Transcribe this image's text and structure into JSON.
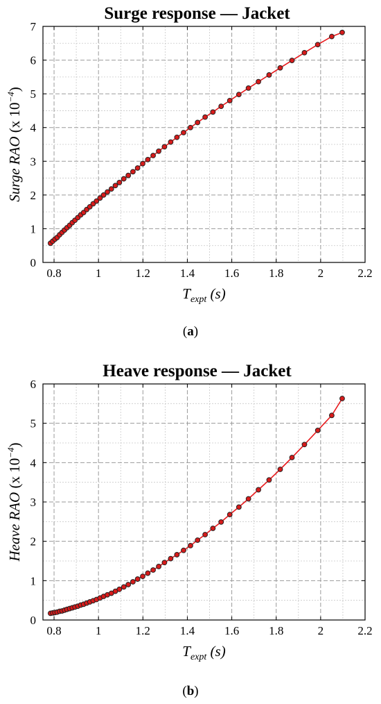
{
  "chart_data": [
    {
      "id": "a",
      "type": "line",
      "title": "Surge response — Jacket",
      "xlabel_main": "T",
      "xlabel_sub": "expt",
      "xlabel_unit": " (s)",
      "ylabel_main": "Surge RAO",
      "ylabel_unit": " (x 10",
      "ylabel_exp": "−4",
      "ylabel_close": ")",
      "xlim": [
        0.75,
        2.2
      ],
      "ylim": [
        0,
        7
      ],
      "x_ticks": [
        "0.8",
        "1",
        "1.2",
        "1.4",
        "1.6",
        "1.8",
        "2",
        "2.2"
      ],
      "x_tick_values": [
        0.8,
        1.0,
        1.2,
        1.4,
        1.6,
        1.8,
        2.0,
        2.2
      ],
      "y_ticks": [
        "0",
        "1",
        "2",
        "3",
        "4",
        "5",
        "6",
        "7"
      ],
      "y_tick_values": [
        0,
        1,
        2,
        3,
        4,
        5,
        6,
        7
      ],
      "minor_grid": true,
      "series": [
        {
          "x": [
            0.784,
            0.794,
            0.804,
            0.814,
            0.825,
            0.836,
            0.847,
            0.858,
            0.87,
            0.882,
            0.894,
            0.907,
            0.92,
            0.933,
            0.947,
            0.961,
            0.976,
            0.991,
            1.007,
            1.023,
            1.04,
            1.058,
            1.076,
            1.094,
            1.114,
            1.134,
            1.155,
            1.176,
            1.199,
            1.222,
            1.246,
            1.271,
            1.297,
            1.325,
            1.353,
            1.383,
            1.414,
            1.446,
            1.48,
            1.515,
            1.552,
            1.591,
            1.632,
            1.675,
            1.72,
            1.768,
            1.818,
            1.871,
            1.927,
            1.987,
            2.05,
            2.097
          ],
          "y": [
            0.57,
            0.63,
            0.69,
            0.74,
            0.82,
            0.89,
            0.96,
            1.03,
            1.1,
            1.18,
            1.25,
            1.33,
            1.41,
            1.48,
            1.57,
            1.65,
            1.74,
            1.82,
            1.91,
            2.0,
            2.09,
            2.18,
            2.28,
            2.37,
            2.48,
            2.58,
            2.69,
            2.8,
            2.93,
            3.05,
            3.17,
            3.3,
            3.43,
            3.57,
            3.71,
            3.85,
            4.0,
            4.15,
            4.31,
            4.46,
            4.63,
            4.8,
            4.98,
            5.17,
            5.36,
            5.56,
            5.77,
            5.99,
            6.22,
            6.46,
            6.7,
            6.82
          ]
        }
      ]
    },
    {
      "id": "b",
      "type": "line",
      "title": "Heave response — Jacket",
      "xlabel_main": "T",
      "xlabel_sub": "expt",
      "xlabel_unit": " (s)",
      "ylabel_main": "Heave RAO",
      "ylabel_unit": " (x 10",
      "ylabel_exp": "−4",
      "ylabel_close": ")",
      "xlim": [
        0.75,
        2.2
      ],
      "ylim": [
        0,
        6
      ],
      "x_ticks": [
        "0.8",
        "1",
        "1.2",
        "1.4",
        "1.6",
        "1.8",
        "2",
        "2.2"
      ],
      "x_tick_values": [
        0.8,
        1.0,
        1.2,
        1.4,
        1.6,
        1.8,
        2.0,
        2.2
      ],
      "y_ticks": [
        "0",
        "1",
        "2",
        "3",
        "4",
        "5",
        "6"
      ],
      "y_tick_values": [
        0,
        1,
        2,
        3,
        4,
        5,
        6
      ],
      "minor_grid": true,
      "series": [
        {
          "x": [
            0.784,
            0.794,
            0.804,
            0.814,
            0.825,
            0.836,
            0.847,
            0.858,
            0.87,
            0.882,
            0.894,
            0.907,
            0.92,
            0.933,
            0.947,
            0.961,
            0.976,
            0.991,
            1.007,
            1.023,
            1.04,
            1.058,
            1.076,
            1.094,
            1.114,
            1.134,
            1.155,
            1.176,
            1.199,
            1.222,
            1.246,
            1.271,
            1.297,
            1.325,
            1.353,
            1.383,
            1.414,
            1.446,
            1.48,
            1.515,
            1.552,
            1.591,
            1.632,
            1.675,
            1.72,
            1.768,
            1.818,
            1.871,
            1.927,
            1.987,
            2.05,
            2.097
          ],
          "y": [
            0.17,
            0.18,
            0.19,
            0.2,
            0.22,
            0.23,
            0.25,
            0.27,
            0.29,
            0.31,
            0.33,
            0.35,
            0.38,
            0.4,
            0.43,
            0.46,
            0.49,
            0.52,
            0.56,
            0.6,
            0.64,
            0.68,
            0.73,
            0.78,
            0.84,
            0.9,
            0.97,
            1.04,
            1.11,
            1.19,
            1.27,
            1.36,
            1.46,
            1.56,
            1.66,
            1.77,
            1.89,
            2.03,
            2.17,
            2.33,
            2.49,
            2.68,
            2.87,
            3.08,
            3.31,
            3.56,
            3.83,
            4.13,
            4.46,
            4.82,
            5.2,
            5.63
          ]
        }
      ]
    }
  ],
  "captions": {
    "a": {
      "open": "(",
      "letter": "a",
      "close": ")"
    },
    "b": {
      "open": "(",
      "letter": "b",
      "close": ")"
    }
  },
  "colors": {
    "line": "#e8191c",
    "marker_fill": "#d81b1b",
    "marker_edge": "#222222",
    "grid": "#9a9a9a"
  }
}
